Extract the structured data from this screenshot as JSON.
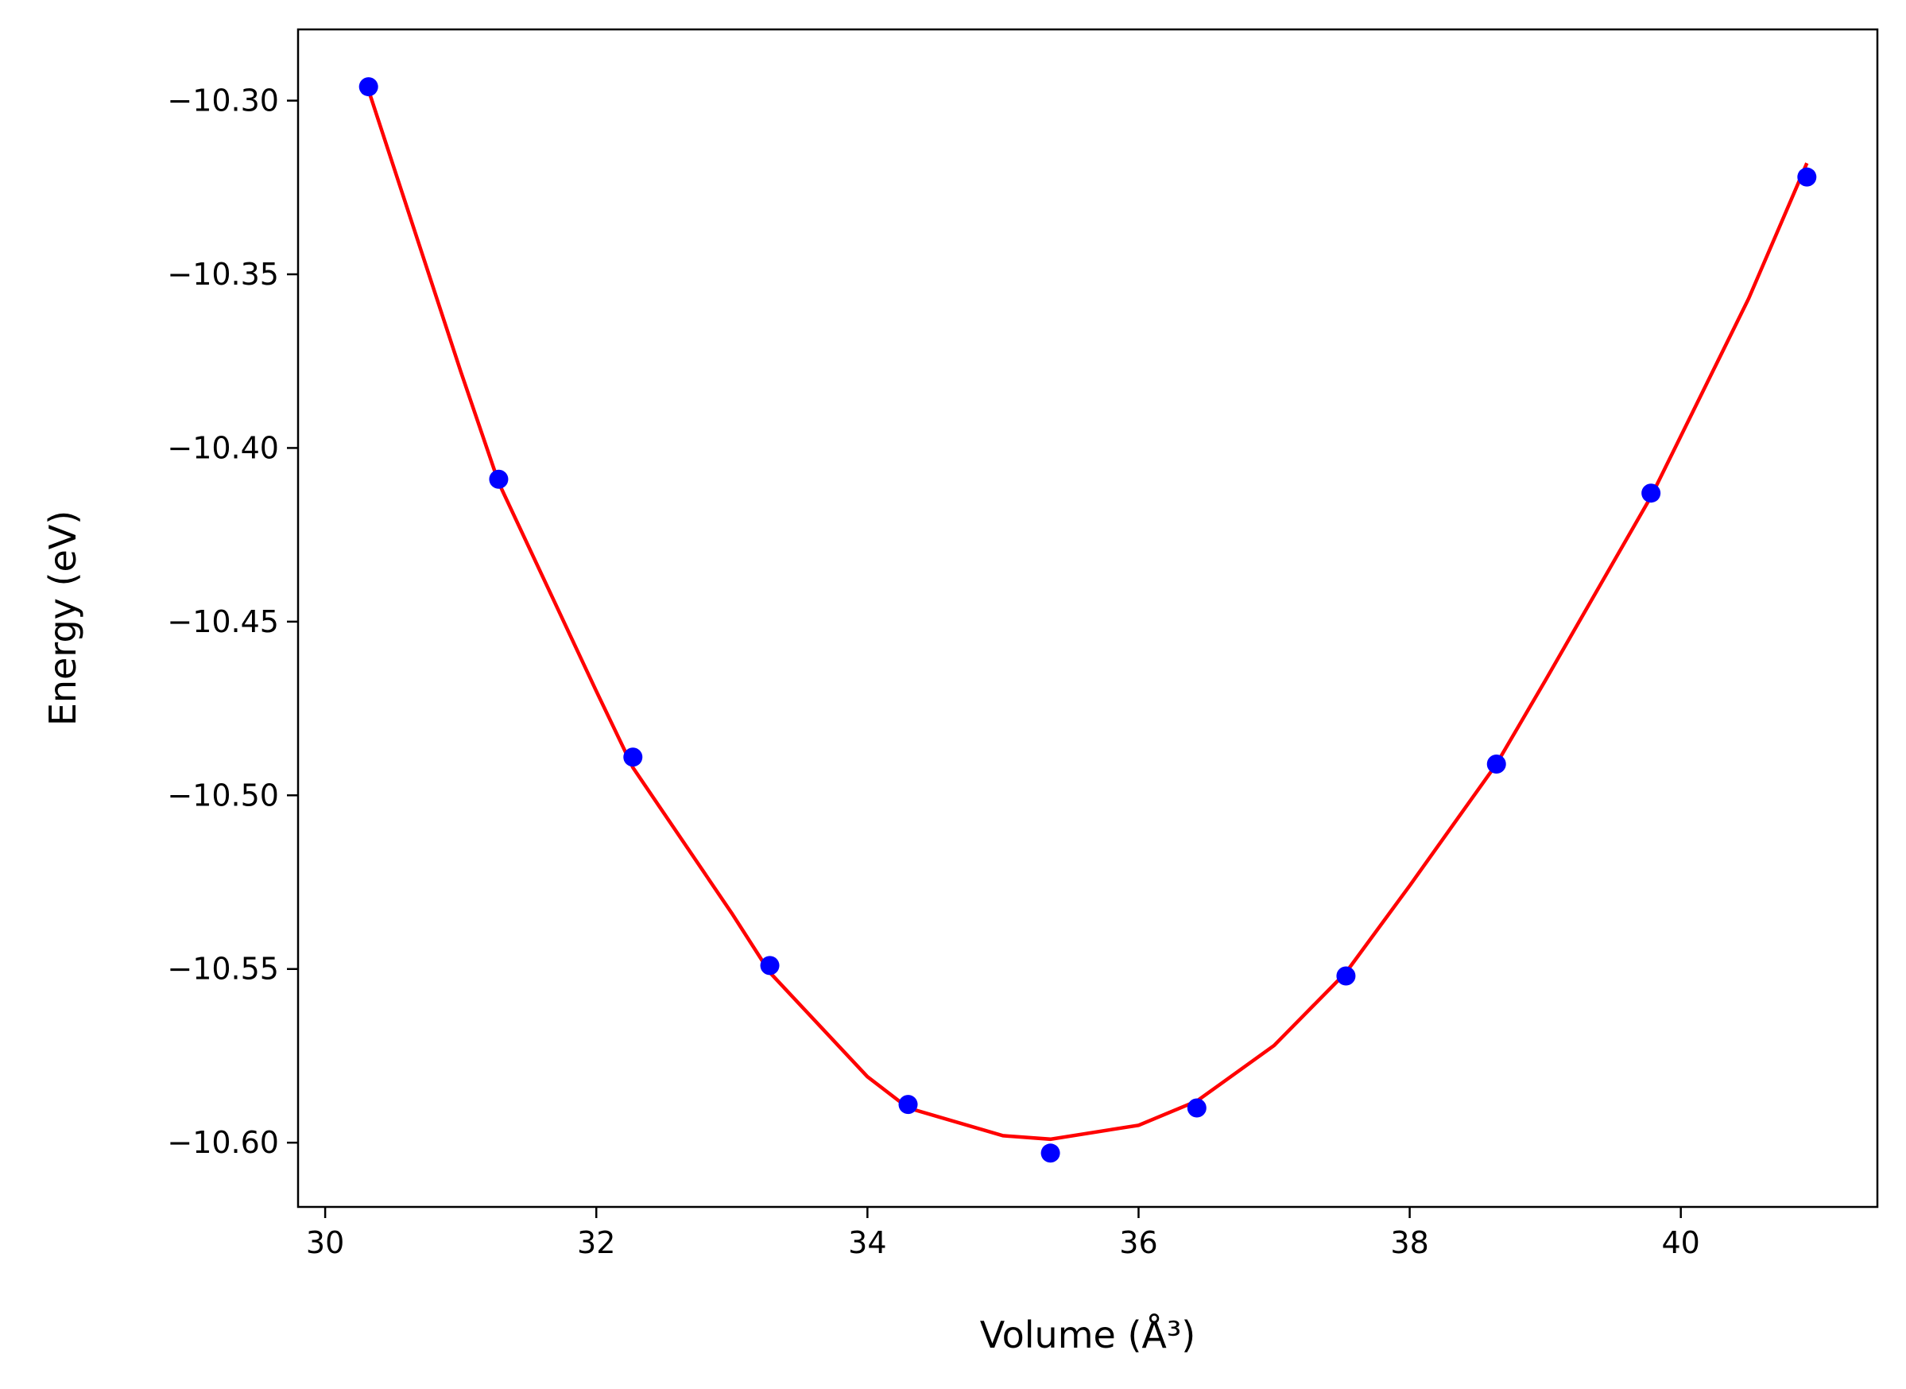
{
  "chart_data": {
    "type": "scatter",
    "xlabel": "Volume",
    "xlabel_unit": "(Å³)",
    "ylabel": "Energy",
    "ylabel_unit": "(eV)",
    "xlim": [
      29.8,
      41.45
    ],
    "ylim": [
      -10.6185,
      -10.2795
    ],
    "x_ticks": [
      30,
      32,
      34,
      36,
      38,
      40
    ],
    "x_tick_labels": [
      "30",
      "32",
      "34",
      "36",
      "38",
      "40"
    ],
    "y_ticks": [
      -10.6,
      -10.55,
      -10.5,
      -10.45,
      -10.4,
      -10.35,
      -10.3
    ],
    "y_tick_labels": [
      "−10.60",
      "−10.55",
      "−10.50",
      "−10.45",
      "−10.40",
      "−10.35",
      "−10.30"
    ],
    "grid": false,
    "series": [
      {
        "kind": "points",
        "color": "#0000ff",
        "x": [
          30.32,
          31.28,
          32.27,
          33.28,
          34.3,
          35.35,
          36.43,
          37.53,
          38.64,
          39.78,
          40.93
        ],
        "y": [
          -10.296,
          -10.409,
          -10.489,
          -10.549,
          -10.589,
          -10.603,
          -10.59,
          -10.552,
          -10.491,
          -10.413,
          -10.322
        ]
      },
      {
        "kind": "fit-line",
        "color": "#ff0000",
        "x": [
          30.32,
          31.0,
          31.28,
          32.0,
          32.27,
          33.0,
          33.28,
          34.0,
          34.3,
          35.0,
          35.35,
          36.0,
          36.43,
          37.0,
          37.53,
          38.0,
          38.64,
          39.0,
          39.78,
          40.5,
          40.93
        ],
        "y": [
          -10.297,
          -10.378,
          -10.41,
          -10.47,
          -10.492,
          -10.534,
          -10.551,
          -10.581,
          -10.59,
          -10.598,
          -10.599,
          -10.595,
          -10.588,
          -10.572,
          -10.551,
          -10.526,
          -10.491,
          -10.467,
          -10.414,
          -10.357,
          -10.318
        ]
      }
    ]
  }
}
